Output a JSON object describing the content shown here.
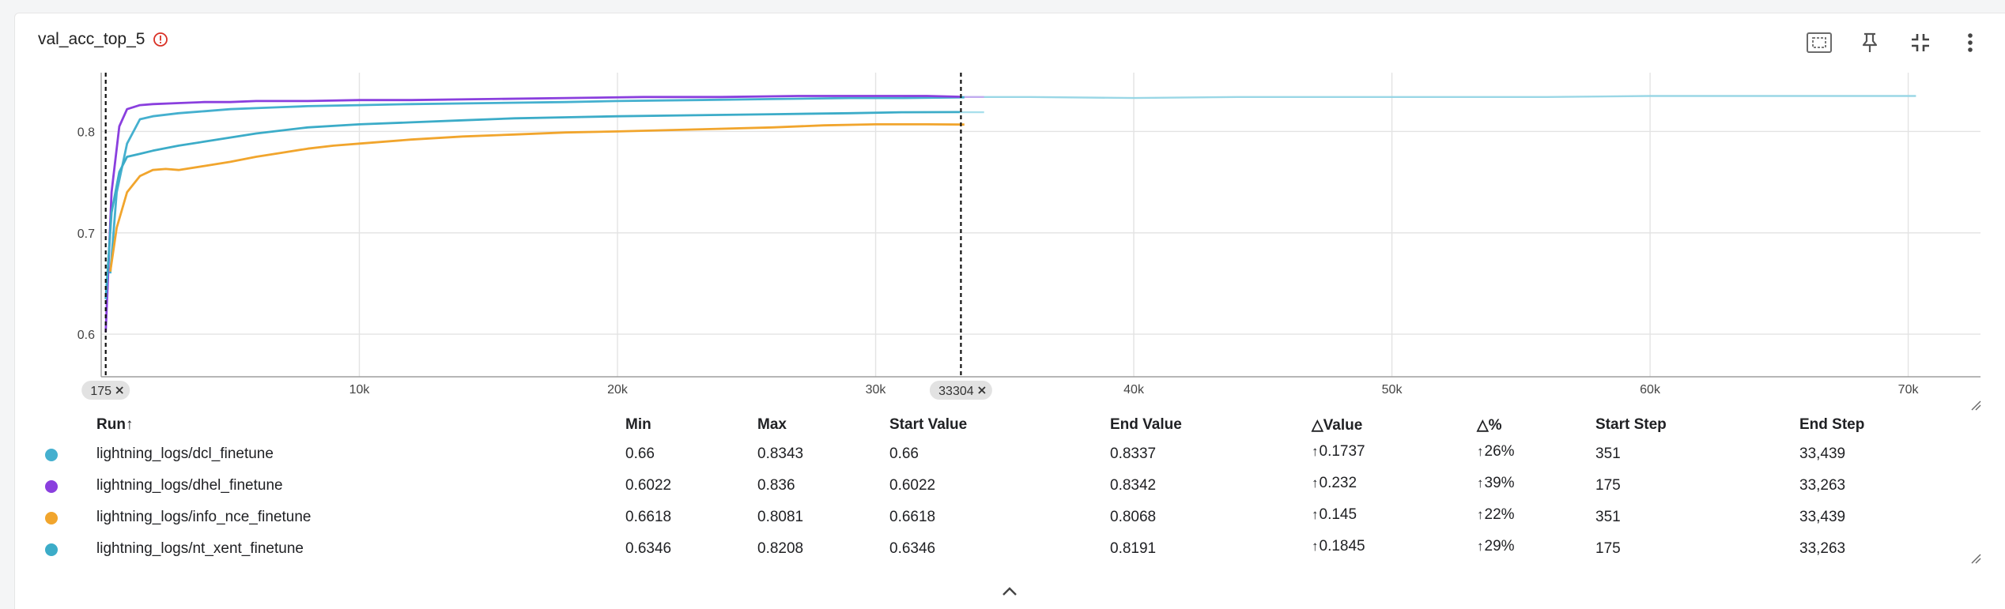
{
  "card": {
    "title": "val_acc_top_5"
  },
  "toolbar": {
    "icons": [
      "fit-domain-icon",
      "pin-icon",
      "collapse-icon",
      "more-vert-icon"
    ]
  },
  "chart_data": {
    "type": "line",
    "xlim": [
      0,
      72800
    ],
    "ylim": [
      0.558,
      0.858
    ],
    "x_ticks": [
      {
        "v": 10000,
        "label": "10k"
      },
      {
        "v": 20000,
        "label": "20k"
      },
      {
        "v": 30000,
        "label": "30k"
      },
      {
        "v": 40000,
        "label": "40k"
      },
      {
        "v": 50000,
        "label": "50k"
      },
      {
        "v": 60000,
        "label": "60k"
      },
      {
        "v": 70000,
        "label": "70k"
      }
    ],
    "y_ticks": [
      {
        "v": 0.6,
        "label": "0.6"
      },
      {
        "v": 0.7,
        "label": "0.7"
      },
      {
        "v": 0.8,
        "label": "0.8"
      }
    ],
    "grid": true,
    "range_markers": [
      {
        "step": 175,
        "label": "175"
      },
      {
        "step": 33304,
        "label": "33304"
      }
    ],
    "series": [
      {
        "name": "lightning_logs/dcl_finetune",
        "color": "#45b0cf",
        "x": [
          351,
          600,
          1000,
          1500,
          2000,
          3000,
          4000,
          5000,
          6000,
          7000,
          8000,
          10000,
          12000,
          15000,
          18000,
          20000,
          23000,
          26000,
          29000,
          31000,
          33439
        ],
        "y": [
          0.66,
          0.74,
          0.788,
          0.812,
          0.815,
          0.818,
          0.82,
          0.822,
          0.823,
          0.824,
          0.825,
          0.826,
          0.827,
          0.828,
          0.829,
          0.83,
          0.831,
          0.832,
          0.833,
          0.833,
          0.8337
        ]
      },
      {
        "name": "lightning_logs/dhel_finetune",
        "color": "#8a3fde",
        "x": [
          175,
          400,
          700,
          1000,
          1500,
          2000,
          3000,
          4000,
          5000,
          6000,
          8000,
          10000,
          12000,
          15000,
          18000,
          21000,
          24000,
          27000,
          30000,
          32000,
          33263
        ],
        "y": [
          0.6022,
          0.74,
          0.805,
          0.822,
          0.826,
          0.827,
          0.828,
          0.829,
          0.829,
          0.83,
          0.83,
          0.831,
          0.831,
          0.832,
          0.833,
          0.834,
          0.834,
          0.835,
          0.835,
          0.835,
          0.8342
        ]
      },
      {
        "name": "lightning_logs/info_nce_finetune",
        "color": "#f1a52d",
        "x": [
          351,
          600,
          1000,
          1500,
          2000,
          2500,
          3000,
          4000,
          5000,
          6000,
          7000,
          8000,
          9000,
          10000,
          12000,
          14000,
          16000,
          18000,
          20000,
          23000,
          26000,
          28000,
          30000,
          32000,
          33439
        ],
        "y": [
          0.6618,
          0.705,
          0.74,
          0.756,
          0.762,
          0.763,
          0.762,
          0.766,
          0.77,
          0.775,
          0.779,
          0.783,
          0.786,
          0.788,
          0.792,
          0.795,
          0.797,
          0.799,
          0.8,
          0.802,
          0.804,
          0.806,
          0.807,
          0.807,
          0.8068
        ]
      },
      {
        "name": "lightning_logs/nt_xent_finetune",
        "color": "#3cacc8",
        "x": [
          175,
          400,
          700,
          1000,
          1500,
          2000,
          3000,
          4000,
          5000,
          6000,
          7000,
          8000,
          10000,
          12000,
          14000,
          16000,
          18000,
          20000,
          23000,
          26000,
          29000,
          31000,
          33263
        ],
        "y": [
          0.6346,
          0.72,
          0.76,
          0.775,
          0.778,
          0.781,
          0.786,
          0.79,
          0.794,
          0.798,
          0.801,
          0.804,
          0.807,
          0.809,
          0.811,
          0.813,
          0.814,
          0.815,
          0.816,
          0.817,
          0.818,
          0.819,
          0.8191
        ]
      }
    ],
    "faded_series": [
      {
        "color": "#8fd3e3",
        "x": [
          33439,
          36000,
          40000,
          44000,
          48000,
          52000,
          56000,
          60000,
          64000,
          68000,
          70300
        ],
        "y": [
          0.834,
          0.834,
          0.833,
          0.834,
          0.834,
          0.834,
          0.834,
          0.835,
          0.835,
          0.835,
          0.835
        ]
      },
      {
        "color": "#c7a6f0",
        "x": [
          33263,
          34200
        ],
        "y": [
          0.834,
          0.834
        ]
      },
      {
        "color": "#9fdcea",
        "x": [
          33263,
          34200
        ],
        "y": [
          0.819,
          0.819
        ]
      }
    ]
  },
  "table": {
    "headers": {
      "run": "Run",
      "run_sort": "↑",
      "min": "Min",
      "max": "Max",
      "start_value": "Start Value",
      "end_value": "End Value",
      "delta_value": "Value",
      "delta_pct": "%",
      "start_step": "Start Step",
      "end_step": "End Step"
    },
    "rows": [
      {
        "color": "#45b0cf",
        "run": "lightning_logs/dcl_finetune",
        "min": "0.66",
        "max": "0.8343",
        "start_value": "0.66",
        "end_value": "0.8337",
        "delta_value": "0.1737",
        "delta_pct": "26%",
        "start_step": "351",
        "end_step": "33,439"
      },
      {
        "color": "#8a3fde",
        "run": "lightning_logs/dhel_finetune",
        "min": "0.6022",
        "max": "0.836",
        "start_value": "0.6022",
        "end_value": "0.8342",
        "delta_value": "0.232",
        "delta_pct": "39%",
        "start_step": "175",
        "end_step": "33,263"
      },
      {
        "color": "#f1a52d",
        "run": "lightning_logs/info_nce_finetune",
        "min": "0.6618",
        "max": "0.8081",
        "start_value": "0.6618",
        "end_value": "0.8068",
        "delta_value": "0.145",
        "delta_pct": "22%",
        "start_step": "351",
        "end_step": "33,439"
      },
      {
        "color": "#3cacc8",
        "run": "lightning_logs/nt_xent_finetune",
        "min": "0.6346",
        "max": "0.8208",
        "start_value": "0.6346",
        "end_value": "0.8191",
        "delta_value": "0.1845",
        "delta_pct": "29%",
        "start_step": "175",
        "end_step": "33,263"
      }
    ]
  },
  "footer": {
    "expand_icon": "chevron-up-icon"
  }
}
